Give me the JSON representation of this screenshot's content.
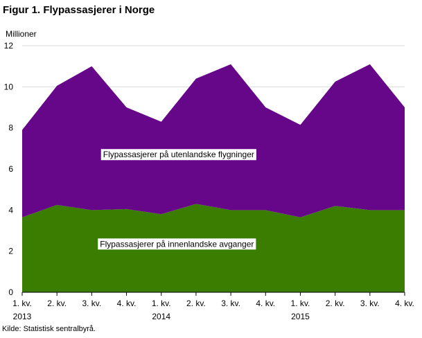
{
  "figure": {
    "title": "Figur 1. Flypassasjerer i Norge",
    "unit_label": "Millioner",
    "source": "Kilde: Statistisk sentralbyrå."
  },
  "chart_data": {
    "type": "area",
    "stacked": true,
    "title": "Figur 1. Flypassasjerer i Norge",
    "xlabel": "",
    "ylabel": "Millioner",
    "ylim": [
      0,
      12
    ],
    "yticks": [
      0,
      2,
      4,
      6,
      8,
      10,
      12
    ],
    "grid": true,
    "legend": "inline labels",
    "categories": [
      "1. kv.",
      "2. kv.",
      "3. kv.",
      "4. kv.",
      "1. kv.",
      "2. kv.",
      "3. kv.",
      "4. kv.",
      "1. kv.",
      "2. kv.",
      "3. kv.",
      "4. kv."
    ],
    "year_labels": [
      {
        "index": 0,
        "label": "2013"
      },
      {
        "index": 4,
        "label": "2014"
      },
      {
        "index": 8,
        "label": "2015"
      }
    ],
    "series": [
      {
        "name": "Flypassasjerer  på innenlandske  avganger",
        "color": "#3a7d00",
        "values": [
          3.65,
          4.25,
          4.0,
          4.05,
          3.8,
          4.3,
          4.0,
          4.0,
          3.65,
          4.2,
          4.0,
          4.0
        ]
      },
      {
        "name": "Flypassasjerer  på utenlandske  flygninger",
        "color": "#66078a",
        "values": [
          4.25,
          5.8,
          7.0,
          4.95,
          4.5,
          6.1,
          7.1,
          5.0,
          4.5,
          6.05,
          7.1,
          5.0
        ]
      }
    ],
    "annotations": [
      {
        "series": 1,
        "text": "Flypassasjerer  på utenlandske  flygninger",
        "at": [
          4.5,
          6.7
        ]
      },
      {
        "series": 0,
        "text": "Flypassasjerer  på innenlandske  avganger",
        "at": [
          4.45,
          2.35
        ]
      }
    ]
  }
}
